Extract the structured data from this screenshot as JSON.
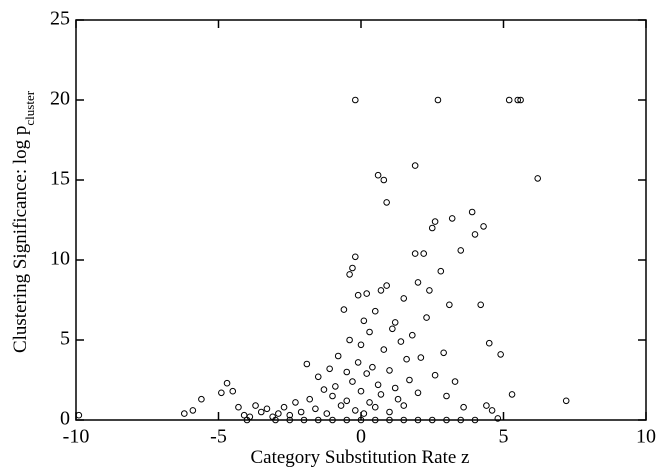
{
  "chart_data": {
    "type": "scatter",
    "xlabel": "Category Substitution Rate z",
    "ylabel": "Clustering Significance: log p",
    "ylabel_sub": "cluster",
    "xlim": [
      -10,
      10
    ],
    "xticks": [
      -10,
      -5,
      0,
      5,
      10
    ],
    "ylim": [
      0,
      25
    ],
    "yticks": [
      0,
      5,
      10,
      15,
      20,
      25
    ],
    "grid": false,
    "series": [
      {
        "color": "#000000",
        "x": [
          -9.9,
          -6.2,
          -5.9,
          -5.6,
          -4.7,
          -4.9,
          -4.5,
          -4.3,
          -4.1,
          -3.9,
          -3.7,
          -3.5,
          -3.3,
          -3.1,
          -2.9,
          -2.7,
          -2.5,
          -2.3,
          -2.1,
          -1.9,
          -1.8,
          -1.6,
          -1.5,
          -1.3,
          -1.2,
          -1.1,
          -1.0,
          -0.9,
          -0.8,
          -0.7,
          -0.6,
          -0.5,
          -0.5,
          -0.4,
          -0.4,
          -0.3,
          -0.3,
          -0.2,
          -0.2,
          -0.2,
          -0.1,
          -0.1,
          0.0,
          0.0,
          0.1,
          0.1,
          0.2,
          0.2,
          0.3,
          0.3,
          0.4,
          0.5,
          0.5,
          0.6,
          0.6,
          0.7,
          0.7,
          0.8,
          0.8,
          0.9,
          0.9,
          1.0,
          1.0,
          1.1,
          1.2,
          1.2,
          1.3,
          1.4,
          1.5,
          1.5,
          1.6,
          1.7,
          1.8,
          1.9,
          1.9,
          2.0,
          2.0,
          2.1,
          2.2,
          2.3,
          2.4,
          2.5,
          2.6,
          2.6,
          2.7,
          2.8,
          2.9,
          3.0,
          3.1,
          3.2,
          3.3,
          3.5,
          3.6,
          3.9,
          4.0,
          4.2,
          4.3,
          4.4,
          4.5,
          4.6,
          4.8,
          4.9,
          5.2,
          5.3,
          5.5,
          5.6,
          6.2,
          7.2,
          -4,
          -3,
          -2,
          -1,
          0,
          1,
          2,
          3,
          4,
          0.5,
          -0.5,
          1.5,
          -1.5,
          2.5,
          -2.5,
          3.5
        ],
        "values": [
          0.3,
          0.4,
          0.6,
          1.3,
          2.3,
          1.7,
          1.8,
          0.8,
          0.3,
          0.2,
          0.9,
          0.5,
          0.7,
          0.2,
          0.4,
          0.8,
          0.3,
          1.1,
          0.5,
          3.5,
          1.3,
          0.7,
          2.7,
          1.9,
          0.4,
          3.2,
          1.5,
          2.1,
          4.0,
          0.9,
          6.9,
          3.0,
          1.2,
          9.1,
          5.0,
          9.5,
          2.4,
          10.2,
          20,
          0.6,
          7.8,
          3.6,
          1.8,
          4.7,
          6.2,
          0.4,
          7.9,
          2.9,
          1.1,
          5.5,
          3.3,
          0.8,
          6.8,
          15.3,
          2.2,
          8.1,
          1.6,
          15.0,
          4.4,
          13.6,
          8.4,
          0.5,
          3.1,
          5.7,
          2.0,
          6.1,
          1.3,
          4.9,
          7.6,
          0.9,
          3.8,
          2.5,
          5.3,
          15.9,
          10.4,
          8.6,
          1.7,
          3.9,
          10.4,
          6.4,
          8.1,
          12.0,
          12.4,
          2.8,
          20,
          9.3,
          4.2,
          1.5,
          7.2,
          12.6,
          2.4,
          10.6,
          0.8,
          13.0,
          11.6,
          7.2,
          12.1,
          0.9,
          4.8,
          0.6,
          0.1,
          4.1,
          20,
          1.6,
          20,
          20,
          15.1,
          1.2,
          0,
          0,
          0,
          0,
          0,
          0,
          0,
          0,
          0,
          0,
          0,
          0,
          0,
          0,
          0,
          0
        ]
      }
    ]
  }
}
